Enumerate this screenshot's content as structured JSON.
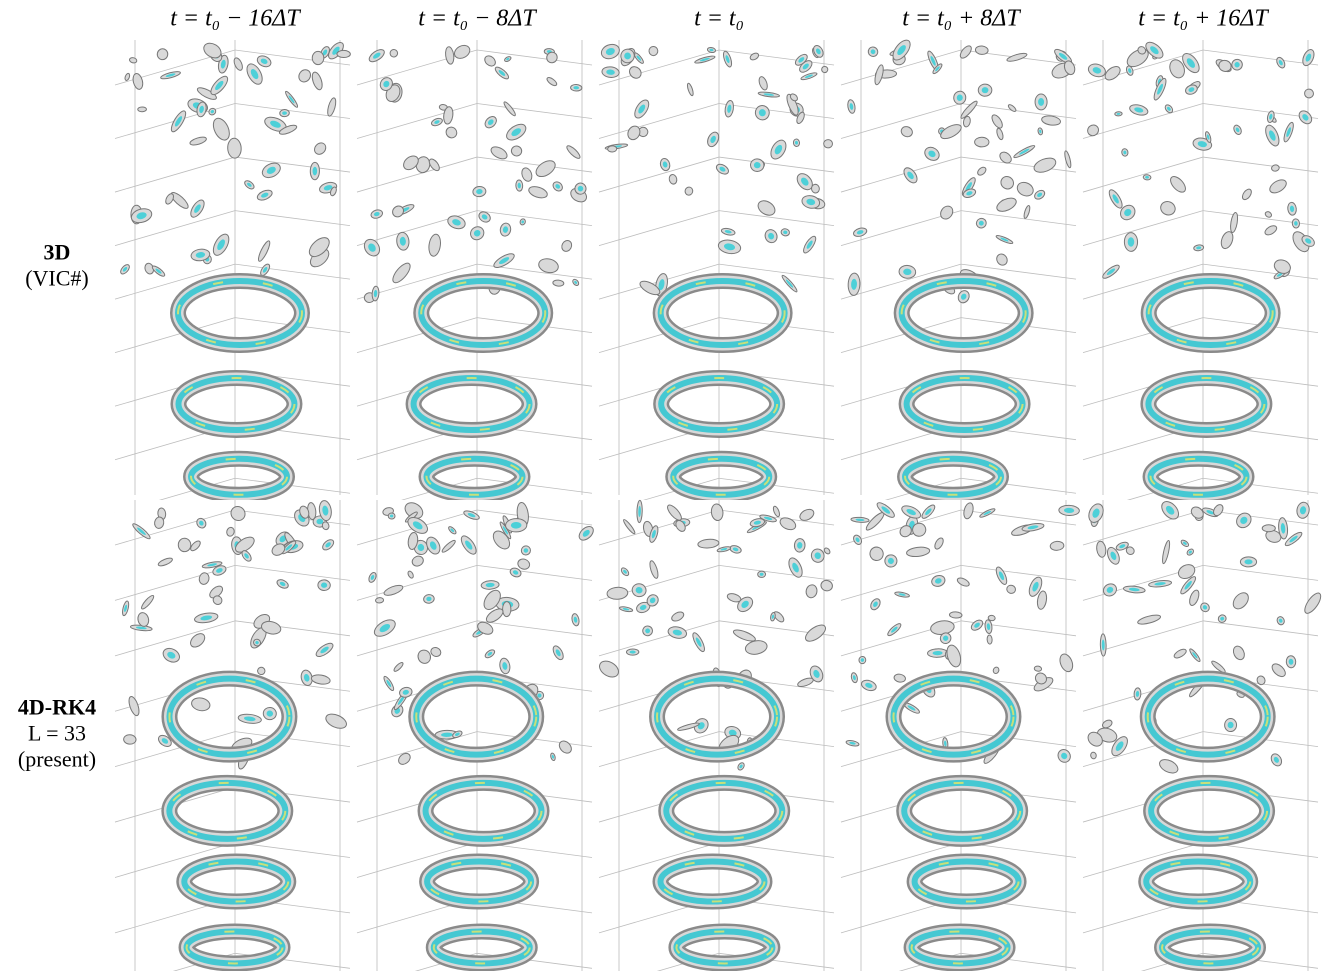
{
  "columns": [
    "t = t₀ − 16ΔT",
    "t = t₀ − 8ΔT",
    "t = t₀",
    "t = t₀ + 8ΔT",
    "t = t₀ + 16ΔT"
  ],
  "rows": [
    {
      "lines": [
        "3D",
        "(VIC#)"
      ]
    },
    {
      "lines": [
        "4D-RK4",
        "L = 33",
        "(present)"
      ]
    }
  ]
}
